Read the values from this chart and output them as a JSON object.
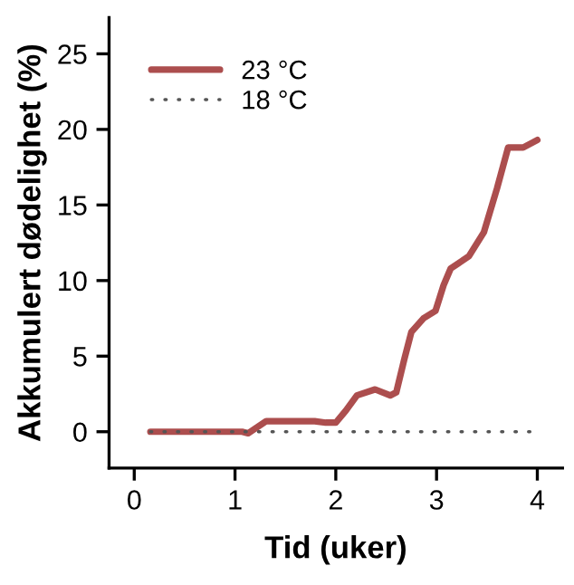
{
  "chart_data": {
    "type": "line",
    "xlabel": "Tid (uker)",
    "ylabel": "Akkumulert dødelighet (%)",
    "xlim": [
      -0.25,
      4.25
    ],
    "ylim": [
      -2.4,
      27.4
    ],
    "xticks": [
      0,
      1,
      2,
      3,
      4
    ],
    "yticks": [
      0,
      5,
      10,
      15,
      20,
      25
    ],
    "grid": false,
    "legend": "top left",
    "marker": "none",
    "series": [
      {
        "name": "23 °C",
        "color": "#a33b3b",
        "line_style": "solid",
        "x": [
          0.16,
          0.6,
          1.07,
          1.13,
          1.22,
          1.31,
          1.55,
          1.79,
          1.9,
          2.0,
          2.1,
          2.21,
          2.39,
          2.54,
          2.6,
          2.68,
          2.75,
          2.87,
          2.99,
          3.07,
          3.14,
          3.32,
          3.47,
          3.6,
          3.71,
          3.86,
          4.0
        ],
        "values": [
          0,
          0,
          0,
          -0.1,
          0.3,
          0.7,
          0.7,
          0.7,
          0.6,
          0.6,
          1.4,
          2.4,
          2.8,
          2.4,
          2.6,
          4.8,
          6.6,
          7.5,
          8.0,
          9.7,
          10.8,
          11.6,
          13.2,
          16.1,
          18.8,
          18.8,
          19.3
        ]
      },
      {
        "name": "18 °C",
        "color": "#555555",
        "line_style": "dotted",
        "x": [
          0.16,
          3.93
        ],
        "values": [
          0,
          0
        ]
      }
    ]
  }
}
